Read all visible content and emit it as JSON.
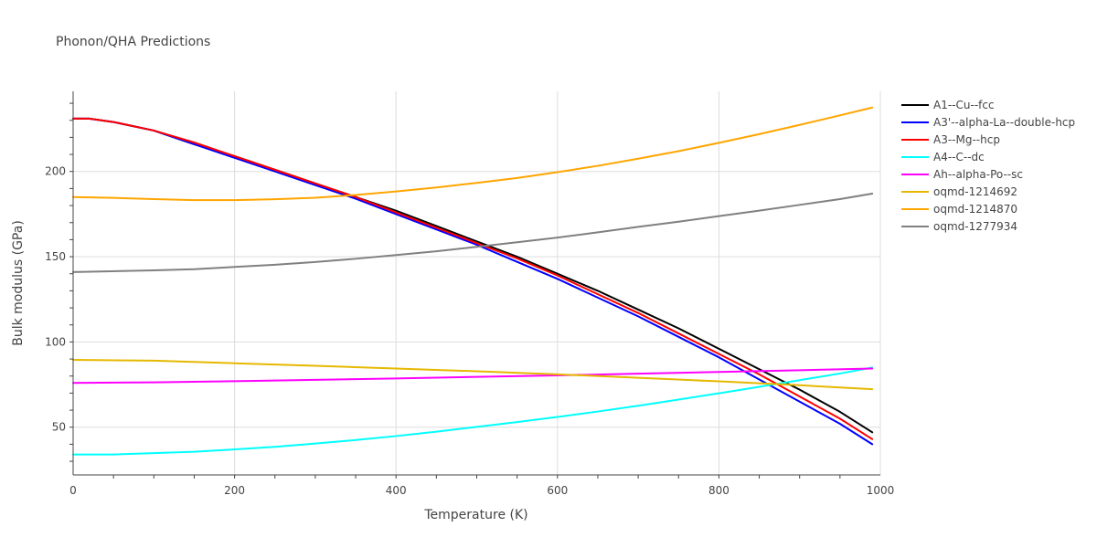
{
  "chart_data": {
    "type": "line",
    "title": "Phonon/QHA Predictions",
    "xlabel": "Temperature (K)",
    "ylabel": "Bulk modulus (GPa)",
    "xlim": [
      0,
      1000
    ],
    "ylim": [
      22,
      247
    ],
    "xticks": [
      0,
      200,
      400,
      600,
      800,
      1000
    ],
    "yticks": [
      50,
      100,
      150,
      200
    ],
    "grid": true,
    "legend_position": "top-right",
    "series": [
      {
        "name": "A1--Cu--fcc",
        "color": "#000000",
        "x": [
          0,
          20,
          50,
          100,
          150,
          200,
          250,
          300,
          350,
          400,
          450,
          500,
          550,
          600,
          650,
          700,
          750,
          800,
          850,
          900,
          950,
          990
        ],
        "y": [
          231,
          231,
          229,
          224,
          216,
          209,
          201,
          193,
          185,
          177,
          168,
          159,
          150,
          140,
          130,
          119,
          108,
          96,
          84,
          72,
          59,
          47
        ]
      },
      {
        "name": "A3'--alpha-La--double-hcp",
        "color": "#0000ff",
        "x": [
          0,
          20,
          50,
          100,
          150,
          200,
          250,
          300,
          350,
          400,
          450,
          500,
          550,
          600,
          650,
          700,
          750,
          800,
          850,
          900,
          950,
          990
        ],
        "y": [
          231,
          231,
          229,
          224,
          216,
          208,
          200,
          192,
          184,
          175,
          166,
          157,
          147,
          137,
          126,
          115,
          103,
          91,
          78,
          65,
          52,
          40
        ]
      },
      {
        "name": "A3--Mg--hcp",
        "color": "#ff0000",
        "x": [
          0,
          20,
          50,
          100,
          150,
          200,
          250,
          300,
          350,
          400,
          450,
          500,
          550,
          600,
          650,
          700,
          750,
          800,
          850,
          900,
          950,
          990
        ],
        "y": [
          231,
          231,
          229,
          224,
          217,
          209,
          201,
          193,
          185,
          176,
          167,
          158,
          149,
          139,
          128,
          117,
          105,
          93,
          81,
          68,
          55,
          43
        ]
      },
      {
        "name": "A4--C--dc",
        "color": "#00ffff",
        "x": [
          0,
          50,
          100,
          150,
          200,
          250,
          300,
          350,
          400,
          450,
          500,
          550,
          600,
          650,
          700,
          750,
          800,
          850,
          900,
          950,
          990
        ],
        "y": [
          34,
          34,
          34.8,
          35.6,
          37,
          38.5,
          40.4,
          42.5,
          44.8,
          47.4,
          50.2,
          53,
          56,
          59.2,
          62.6,
          66.2,
          69.9,
          73.7,
          77.6,
          81.5,
          85
        ]
      },
      {
        "name": "Ah--alpha-Po--sc",
        "color": "#ff00ff",
        "x": [
          0,
          100,
          200,
          300,
          400,
          500,
          600,
          700,
          800,
          900,
          990
        ],
        "y": [
          76,
          76.3,
          77,
          77.8,
          78.6,
          79.5,
          80.4,
          81.4,
          82.4,
          83.4,
          84.4
        ]
      },
      {
        "name": "oqmd-1214692",
        "color": "#e6b800",
        "x": [
          0,
          100,
          200,
          300,
          400,
          500,
          600,
          700,
          800,
          900,
          990
        ],
        "y": [
          89.5,
          89,
          87.5,
          86,
          84.4,
          82.8,
          81,
          79,
          76.9,
          74.6,
          72.3
        ]
      },
      {
        "name": "oqmd-1214870",
        "color": "#ffa500",
        "x": [
          0,
          50,
          100,
          150,
          200,
          250,
          300,
          350,
          400,
          450,
          500,
          550,
          600,
          650,
          700,
          750,
          800,
          850,
          900,
          950,
          990
        ],
        "y": [
          185,
          184.5,
          183.8,
          183.2,
          183.2,
          183.7,
          184.6,
          186.2,
          188.3,
          190.6,
          193.3,
          196.2,
          199.6,
          203.3,
          207.5,
          211.9,
          216.8,
          221.9,
          227.3,
          232.9,
          237.5
        ]
      },
      {
        "name": "oqmd-1277934",
        "color": "#808080",
        "x": [
          0,
          100,
          150,
          200,
          250,
          300,
          350,
          400,
          450,
          500,
          550,
          600,
          650,
          700,
          750,
          800,
          850,
          900,
          950,
          990
        ],
        "y": [
          141,
          142,
          142.7,
          144,
          145.3,
          146.9,
          148.8,
          151,
          153.2,
          155.8,
          158.5,
          161.2,
          164.3,
          167.5,
          170.5,
          173.8,
          177,
          180.4,
          183.8,
          187
        ]
      }
    ]
  }
}
